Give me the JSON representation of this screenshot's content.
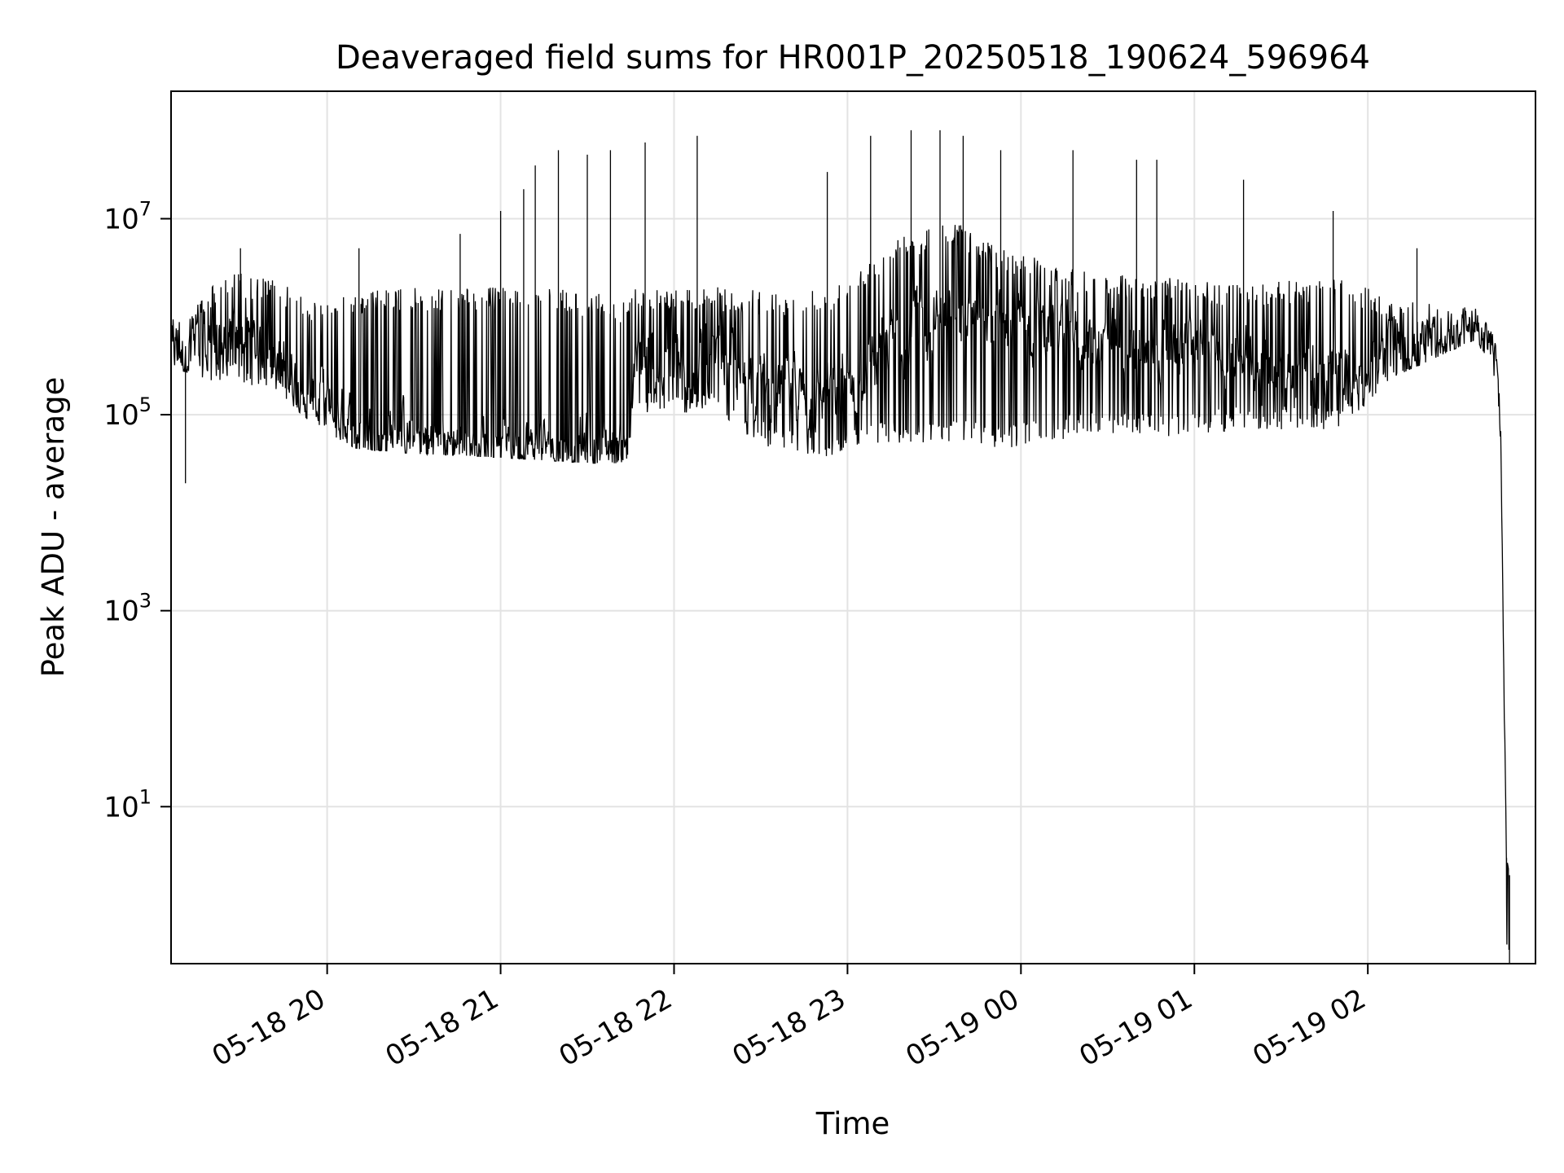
{
  "chart_data": {
    "type": "line",
    "title": "Deaveraged field sums for HR001P_20250518_190624_596964",
    "xlabel": "Time",
    "ylabel": "Peak ADU - average",
    "yscale": "log",
    "ylim": [
      0.25,
      200000000
    ],
    "xlim": [
      "2025-05-18 19:06",
      "2025-05-19 02:58"
    ],
    "grid": true,
    "line_color": "#000000",
    "x_ticks": [
      {
        "value": "2025-05-18 20:00",
        "label": "05-18 20"
      },
      {
        "value": "2025-05-18 21:00",
        "label": "05-18 21"
      },
      {
        "value": "2025-05-18 22:00",
        "label": "05-18 22"
      },
      {
        "value": "2025-05-18 23:00",
        "label": "05-18 23"
      },
      {
        "value": "2025-05-19 00:00",
        "label": "05-19 00"
      },
      {
        "value": "2025-05-19 01:00",
        "label": "05-19 01"
      },
      {
        "value": "2025-05-19 02:00",
        "label": "05-19 02"
      }
    ],
    "y_ticks": [
      {
        "value": 10,
        "base": "10",
        "exp": "1"
      },
      {
        "value": 1000,
        "base": "10",
        "exp": "3"
      },
      {
        "value": 100000,
        "base": "10",
        "exp": "5"
      },
      {
        "value": 10000000,
        "base": "10",
        "exp": "7"
      }
    ],
    "series": [
      {
        "envelope": [
          {
            "t": "2025-05-18 19:06",
            "base": 500000,
            "low": 300000,
            "high": 900000
          },
          {
            "t": "2025-05-18 19:15",
            "base": 500000,
            "low": 250000,
            "high": 1500000
          },
          {
            "t": "2025-05-18 19:25",
            "base": 600000,
            "low": 200000,
            "high": 3000000
          },
          {
            "t": "2025-05-18 19:40",
            "base": 400000,
            "low": 200000,
            "high": 2500000
          },
          {
            "t": "2025-05-18 19:55",
            "base": 150000,
            "low": 80000,
            "high": 1500000
          },
          {
            "t": "2025-05-18 20:10",
            "base": 70000,
            "low": 45000,
            "high": 1800000
          },
          {
            "t": "2025-05-18 20:30",
            "base": 60000,
            "low": 40000,
            "high": 2000000
          },
          {
            "t": "2025-05-18 20:50",
            "base": 55000,
            "low": 38000,
            "high": 2000000
          },
          {
            "t": "2025-05-18 21:10",
            "base": 50000,
            "low": 35000,
            "high": 2000000
          },
          {
            "t": "2025-05-18 21:30",
            "base": 50000,
            "low": 32000,
            "high": 1800000
          },
          {
            "t": "2025-05-18 21:44",
            "base": 50000,
            "low": 32000,
            "high": 1500000
          },
          {
            "t": "2025-05-18 21:46",
            "base": 300000,
            "low": 100000,
            "high": 2000000
          },
          {
            "t": "2025-05-18 22:15",
            "base": 300000,
            "low": 100000,
            "high": 2000000
          },
          {
            "t": "2025-05-18 22:35",
            "base": 200000,
            "low": 40000,
            "high": 1800000
          },
          {
            "t": "2025-05-18 22:55",
            "base": 150000,
            "low": 35000,
            "high": 2000000
          },
          {
            "t": "2025-05-18 23:15",
            "base": 600000,
            "low": 50000,
            "high": 6000000
          },
          {
            "t": "2025-05-18 23:35",
            "base": 1200000,
            "low": 50000,
            "high": 10000000
          },
          {
            "t": "2025-05-18 23:55",
            "base": 800000,
            "low": 45000,
            "high": 5000000
          },
          {
            "t": "2025-05-19 00:20",
            "base": 600000,
            "low": 60000,
            "high": 3000000
          },
          {
            "t": "2025-05-19 00:50",
            "base": 500000,
            "low": 60000,
            "high": 2500000
          },
          {
            "t": "2025-05-19 01:20",
            "base": 400000,
            "low": 70000,
            "high": 2200000
          },
          {
            "t": "2025-05-19 01:50",
            "base": 250000,
            "low": 70000,
            "high": 2500000
          },
          {
            "t": "2025-05-19 02:10",
            "base": 350000,
            "low": 250000,
            "high": 1500000
          },
          {
            "t": "2025-05-19 02:38",
            "base": 800000,
            "low": 600000,
            "high": 1200000
          },
          {
            "t": "2025-05-19 02:44",
            "base": 300000,
            "low": 150000,
            "high": 600000
          },
          {
            "t": "2025-05-19 02:46",
            "base": 60000,
            "low": 50000,
            "high": 100000
          },
          {
            "t": "2025-05-19 02:47",
            "base": 300,
            "low": 300,
            "high": 300
          },
          {
            "t": "2025-05-19 02:48",
            "base": 1,
            "low": 0.3,
            "high": 3
          },
          {
            "t": "2025-05-19 02:49",
            "base": 1,
            "low": 0.3,
            "high": 2
          }
        ],
        "spikes": [
          {
            "t": "2025-05-18 19:11",
            "value": 20000
          },
          {
            "t": "2025-05-18 19:30",
            "value": 5000000
          },
          {
            "t": "2025-05-18 20:11",
            "value": 5000000
          },
          {
            "t": "2025-05-18 20:46",
            "value": 7000000
          },
          {
            "t": "2025-05-18 21:00",
            "value": 12000000
          },
          {
            "t": "2025-05-18 21:08",
            "value": 20000000
          },
          {
            "t": "2025-05-18 21:12",
            "value": 35000000
          },
          {
            "t": "2025-05-18 21:20",
            "value": 50000000
          },
          {
            "t": "2025-05-18 21:30",
            "value": 45000000
          },
          {
            "t": "2025-05-18 21:38",
            "value": 50000000
          },
          {
            "t": "2025-05-18 21:50",
            "value": 60000000
          },
          {
            "t": "2025-05-18 22:08",
            "value": 70000000
          },
          {
            "t": "2025-05-18 22:53",
            "value": 30000000
          },
          {
            "t": "2025-05-18 23:08",
            "value": 70000000
          },
          {
            "t": "2025-05-18 23:22",
            "value": 80000000
          },
          {
            "t": "2025-05-18 23:32",
            "value": 80000000
          },
          {
            "t": "2025-05-18 23:40",
            "value": 70000000
          },
          {
            "t": "2025-05-18 23:53",
            "value": 50000000
          },
          {
            "t": "2025-05-19 00:18",
            "value": 50000000
          },
          {
            "t": "2025-05-19 00:40",
            "value": 40000000
          },
          {
            "t": "2025-05-19 00:47",
            "value": 40000000
          },
          {
            "t": "2025-05-19 01:17",
            "value": 25000000
          },
          {
            "t": "2025-05-19 01:48",
            "value": 12000000
          },
          {
            "t": "2025-05-19 02:17",
            "value": 5000000
          },
          {
            "t": "2025-05-19 02:48",
            "value": 3
          }
        ]
      }
    ]
  }
}
